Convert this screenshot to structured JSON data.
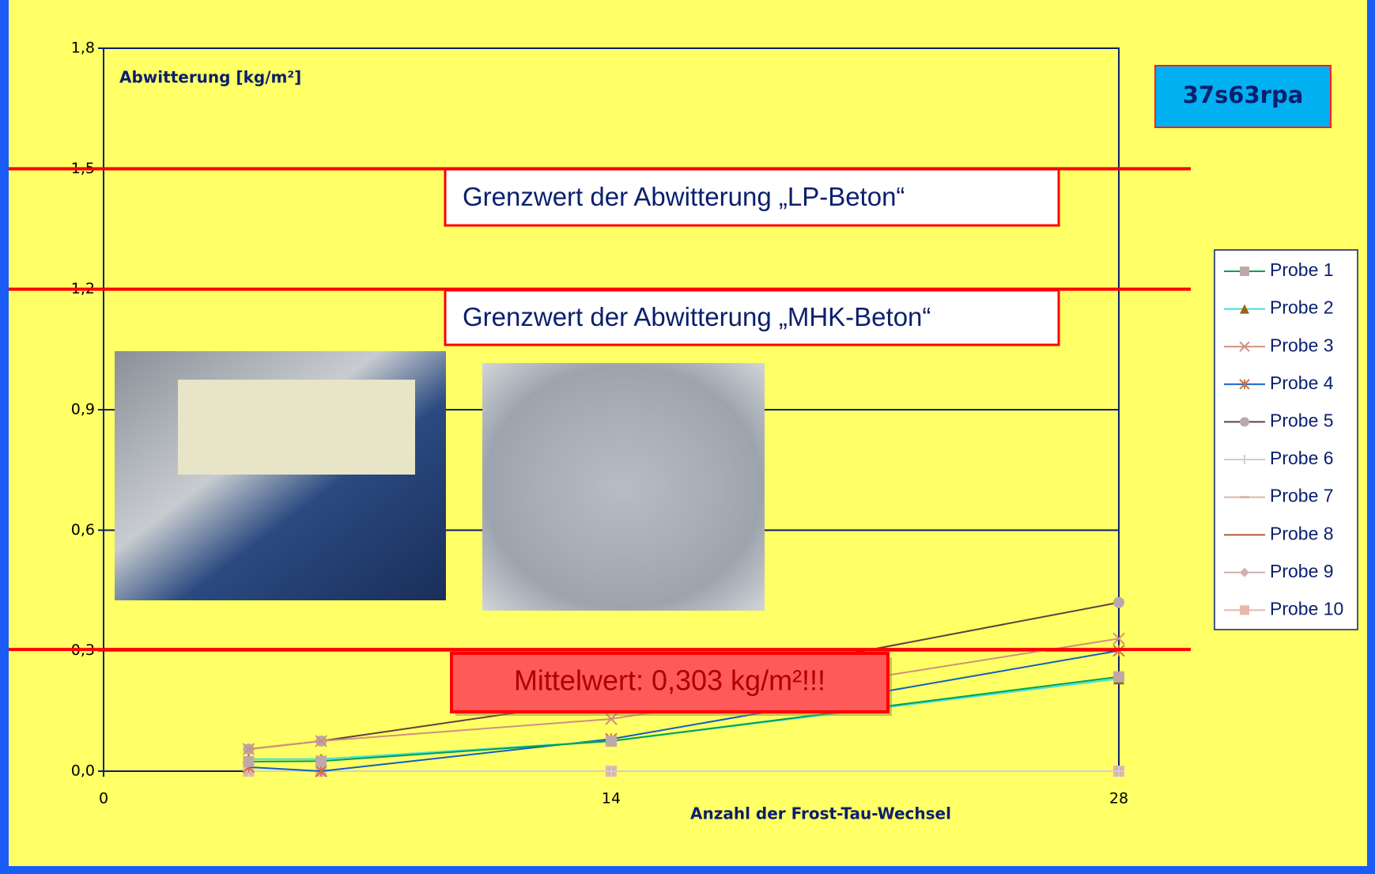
{
  "chart_data": {
    "type": "line",
    "badge": "37s63rpa",
    "y_label": "Abwitterung [kg/m²]",
    "x_label": "Anzahl der Frost-Tau-Wechsel",
    "x": [
      4,
      6,
      14,
      28
    ],
    "xlim": [
      0,
      28
    ],
    "xticks": [
      0,
      14,
      28
    ],
    "ylim": [
      0,
      1.8
    ],
    "yticks": [
      {
        "value": 0,
        "label": "0,0"
      },
      {
        "value": 0.3,
        "label": "0,3"
      },
      {
        "value": 0.6,
        "label": "0,6"
      },
      {
        "value": 0.9,
        "label": "0,9"
      },
      {
        "value": 1.2,
        "label": "1,2"
      },
      {
        "value": 1.5,
        "label": "1,5"
      },
      {
        "value": 1.8,
        "label": "1,8"
      }
    ],
    "grid": true,
    "grid_color": "#0a1f6e",
    "limit_color": "#ff0000",
    "limits": [
      {
        "value": 1.5,
        "label": "Grenzwert der Abwitterung „LP-Beton“"
      },
      {
        "value": 1.2,
        "label": "Grenzwert der Abwitterung „MHK-Beton“"
      },
      {
        "value": 0.303,
        "label": "Mittelwert:  0,303 kg/m²!!!"
      }
    ],
    "legend": "right",
    "series": [
      {
        "name": "Probe 1",
        "color": "#00a050",
        "marker": "square",
        "marker_color": "#c0a8a8",
        "values": [
          0.024,
          0.025,
          0.075,
          0.235
        ]
      },
      {
        "name": "Probe 2",
        "color": "#40e0e0",
        "marker": "triangle",
        "marker_color": "#9a6412",
        "values": [
          0.03,
          0.03,
          0.075,
          0.23
        ]
      },
      {
        "name": "Probe 3",
        "color": "#d09080",
        "marker": "x",
        "marker_color": "#d09080",
        "values": [
          0.055,
          0.075,
          0.13,
          0.33
        ]
      },
      {
        "name": "Probe 4",
        "color": "#1060c0",
        "marker": "star",
        "marker_color": "#d07040",
        "values": [
          0.01,
          0,
          0.08,
          0.3
        ]
      },
      {
        "name": "Probe 5",
        "color": "#604040",
        "marker": "circle",
        "marker_color": "#b8a8b0",
        "values": [
          0.055,
          0.075,
          0.18,
          0.42
        ]
      },
      {
        "name": "Probe 6",
        "color": "#d0d0d0",
        "marker": "plus",
        "marker_color": "#d0d0d0",
        "values": [
          0,
          0,
          0,
          0
        ]
      },
      {
        "name": "Probe 7",
        "color": "#d8b8a8",
        "marker": "dash",
        "marker_color": "#d8b8a8",
        "values": [
          0,
          0,
          0,
          0
        ]
      },
      {
        "name": "Probe 8",
        "color": "#b06040",
        "marker": "none",
        "marker_color": "#b06040",
        "values": [
          0,
          0,
          0,
          0
        ]
      },
      {
        "name": "Probe 9",
        "color": "#d0b0b0",
        "marker": "diamond",
        "marker_color": "#d0b0b0",
        "values": [
          0,
          0,
          0,
          0
        ]
      },
      {
        "name": "Probe 10",
        "color": "#e8b8a8",
        "marker": "square",
        "marker_color": "#e8b8a8",
        "values": [
          0,
          0,
          0,
          0
        ]
      }
    ]
  }
}
